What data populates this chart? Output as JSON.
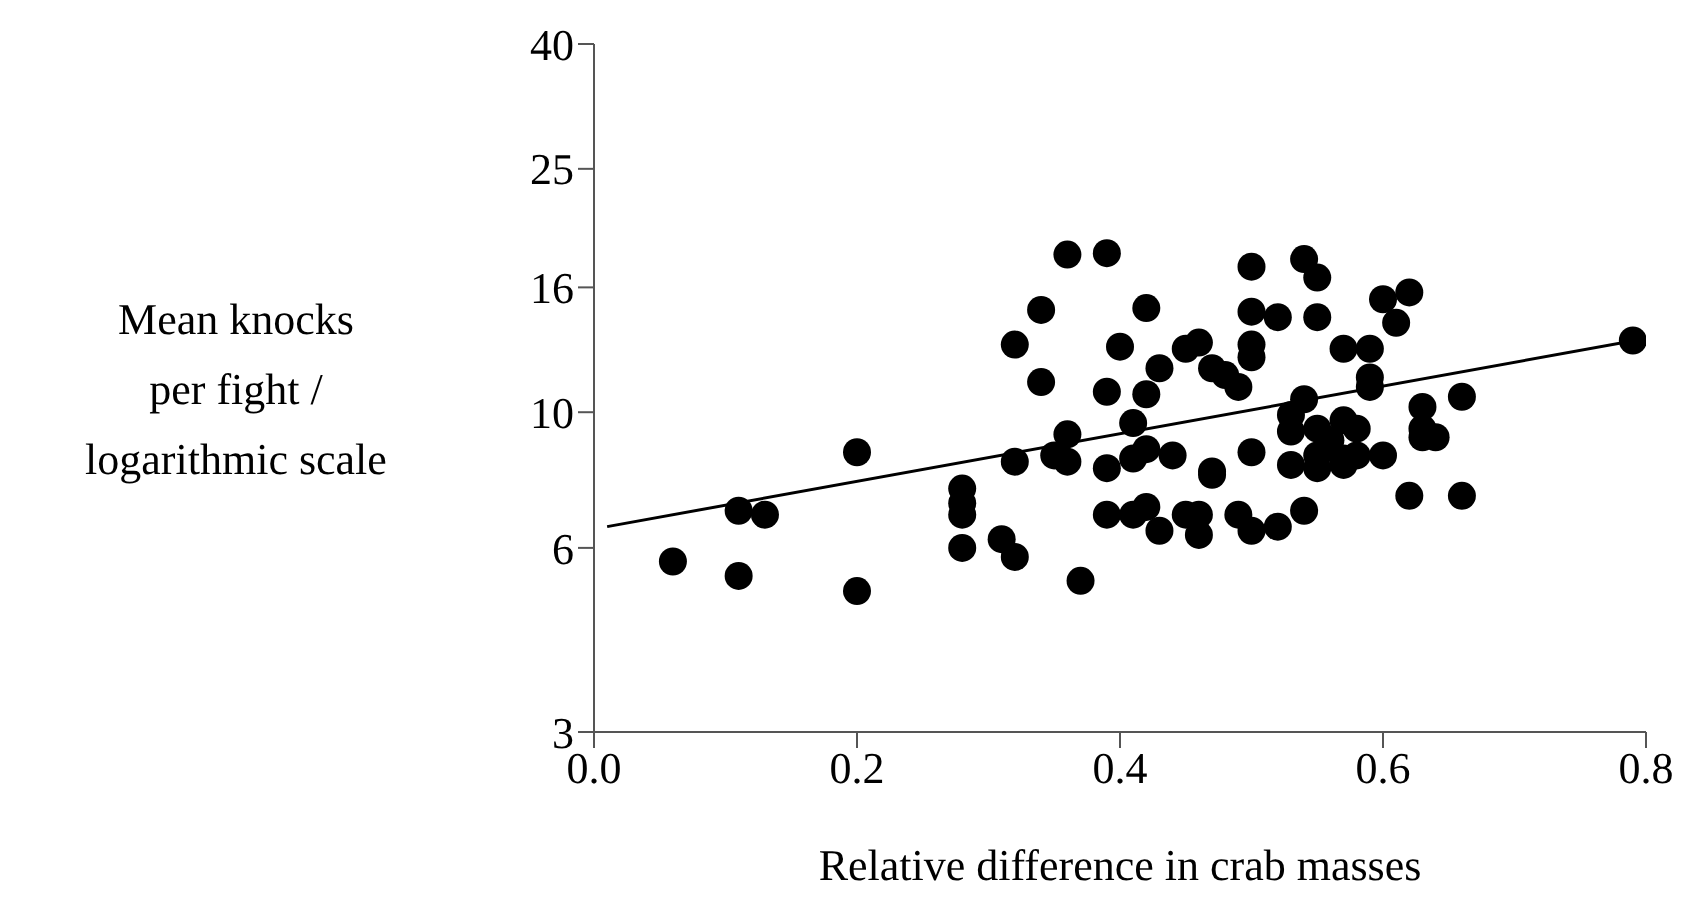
{
  "chart_data": {
    "type": "scatter",
    "xlabel": "Relative difference in crab masses",
    "ylabel": "Mean knocks\nper fight /\nlogarithmic scale",
    "log": "y",
    "xlim": [
      0,
      0.8
    ],
    "xticks": [
      {
        "value": 0,
        "label": "0.0"
      },
      0.2,
      0.4,
      0.6,
      0.8
    ],
    "ylim": [
      3,
      40
    ],
    "yticks": [
      3,
      6,
      10,
      16,
      25,
      40
    ],
    "marker": "circle",
    "series": [
      {
        "color": "#000000",
        "x": [
          0.06,
          0.11,
          0.11,
          0.13,
          0.2,
          0.2,
          0.28,
          0.28,
          0.28,
          0.28,
          0.31,
          0.32,
          0.32,
          0.32,
          0.34,
          0.34,
          0.36,
          0.39,
          0.36,
          0.35,
          0.36,
          0.37,
          0.39,
          0.39,
          0.39,
          0.4,
          0.41,
          0.42,
          0.42,
          0.41,
          0.42,
          0.44,
          0.43,
          0.42,
          0.41,
          0.43,
          0.45,
          0.46,
          0.47,
          0.48,
          0.49,
          0.46,
          0.46,
          0.45,
          0.47,
          0.47,
          0.5,
          0.5,
          0.52,
          0.5,
          0.5,
          0.5,
          0.49,
          0.5,
          0.52,
          0.54,
          0.53,
          0.54,
          0.55,
          0.55,
          0.54,
          0.53,
          0.53,
          0.55,
          0.57,
          0.59,
          0.59,
          0.59,
          0.57,
          0.58,
          0.56,
          0.55,
          0.55,
          0.57,
          0.57,
          0.58,
          0.6,
          0.6,
          0.62,
          0.61,
          0.63,
          0.63,
          0.63,
          0.64,
          0.66,
          0.62,
          0.66,
          0.79
        ],
        "values": [
          5.7,
          5.4,
          6.9,
          6.8,
          8.6,
          5.1,
          7.5,
          7.1,
          6.8,
          6.0,
          6.2,
          5.8,
          8.3,
          12.9,
          14.7,
          11.2,
          18.1,
          18.2,
          9.2,
          8.5,
          8.3,
          5.3,
          10.8,
          8.1,
          6.8,
          12.8,
          9.6,
          14.8,
          10.7,
          8.4,
          8.7,
          8.5,
          11.8,
          7.0,
          6.8,
          6.4,
          12.7,
          13.0,
          11.8,
          11.5,
          11.0,
          6.8,
          6.3,
          6.8,
          8.0,
          7.9,
          17.3,
          14.6,
          14.3,
          12.9,
          12.3,
          8.6,
          6.8,
          6.4,
          6.5,
          6.9,
          8.2,
          17.8,
          16.6,
          14.3,
          10.5,
          9.9,
          9.3,
          9.4,
          12.7,
          12.7,
          11.4,
          11.0,
          9.7,
          9.4,
          9.0,
          8.5,
          8.1,
          8.4,
          8.2,
          8.5,
          8.5,
          15.3,
          15.7,
          14.0,
          10.2,
          9.4,
          9.1,
          9.1,
          10.6,
          7.3,
          7.3,
          13.1
        ]
      },
      {
        "type": "line",
        "color": "#000000",
        "marker": "none",
        "x": [
          0.01,
          0.8
        ],
        "values": [
          6.5,
          13.2
        ]
      }
    ]
  }
}
